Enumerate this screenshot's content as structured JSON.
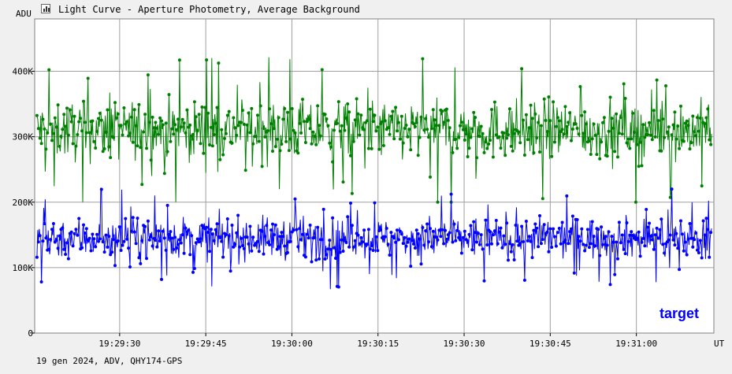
{
  "window": {
    "title": "Light Curve - Aperture Photometry, Average Background",
    "icon": "chart-icon"
  },
  "footer": {
    "info": "19 gen 2024, ADV, QHY174-GPS"
  },
  "chart_data": {
    "type": "line",
    "title": "Light Curve - Aperture Photometry, Average Background",
    "ylabel": "ADU",
    "xlabel": "UT",
    "ylim": [
      0,
      480000
    ],
    "y_ticks": [
      {
        "value": 0,
        "label": "0"
      },
      {
        "value": 100000,
        "label": "100K"
      },
      {
        "value": 200000,
        "label": "200K"
      },
      {
        "value": 300000,
        "label": "300K"
      },
      {
        "value": 400000,
        "label": "400K"
      }
    ],
    "x_range_seconds": [
      -14.8,
      103.5
    ],
    "x_ticks": [
      {
        "t": 0,
        "label": "19:29:30"
      },
      {
        "t": 15,
        "label": "19:29:45"
      },
      {
        "t": 30,
        "label": "19:30:00"
      },
      {
        "t": 45,
        "label": "19:30:15"
      },
      {
        "t": 60,
        "label": "19:30:30"
      },
      {
        "t": 75,
        "label": "19:30:45"
      },
      {
        "t": 90,
        "label": "19:31:00"
      }
    ],
    "grid": true,
    "annotation": "target",
    "series": [
      {
        "name": "",
        "color": "#008000",
        "mean": 310000,
        "spread": 40000,
        "min": 200000,
        "max": 460000
      },
      {
        "name": "target",
        "color": "#0000ff",
        "mean": 145000,
        "spread": 28000,
        "min": 48000,
        "max": 222000
      }
    ]
  }
}
